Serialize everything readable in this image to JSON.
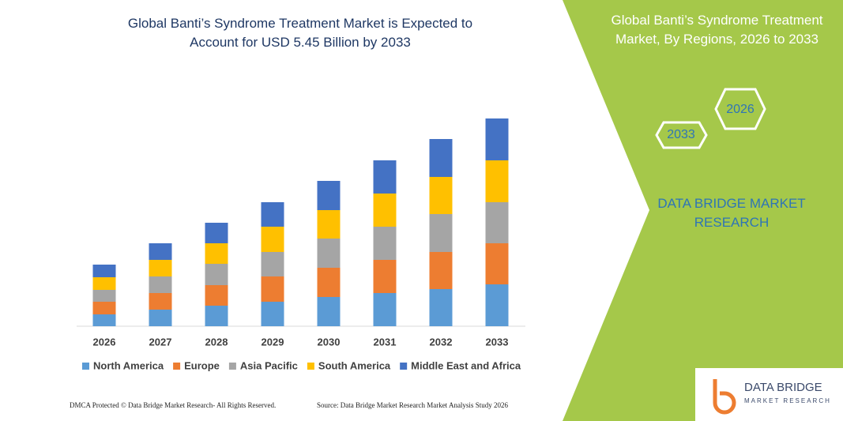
{
  "chart_data": {
    "type": "bar",
    "stacked": true,
    "title": "Global Banti’s Syndrome Treatment Market is Expected to Account for USD 5.45 Billion by 2033",
    "categories": [
      "2026",
      "2027",
      "2028",
      "2029",
      "2030",
      "2031",
      "2032",
      "2033"
    ],
    "series": [
      {
        "name": "North America",
        "color": "#5b9bd5",
        "values": [
          15,
          21,
          26,
          31,
          37,
          42,
          47,
          53
        ]
      },
      {
        "name": "Europe",
        "color": "#ed7d31",
        "values": [
          16,
          21,
          26,
          32,
          37,
          42,
          47,
          52
        ]
      },
      {
        "name": "Asia Pacific",
        "color": "#a5a5a5",
        "values": [
          15,
          21,
          27,
          31,
          37,
          42,
          48,
          52
        ]
      },
      {
        "name": "South America",
        "color": "#ffc000",
        "values": [
          16,
          21,
          26,
          32,
          36,
          42,
          47,
          53
        ]
      },
      {
        "name": "Middle East and Africa",
        "color": "#4472c4",
        "values": [
          16,
          21,
          26,
          31,
          37,
          42,
          48,
          53
        ]
      }
    ]
  },
  "panel": {
    "title": "Global Banti’s Syndrome Treatment Market, By Regions, 2026 to 2033",
    "hexagons": [
      "2026",
      "2033"
    ],
    "brand": "DATA BRIDGE MARKET RESEARCH"
  },
  "footer": {
    "dmca": "DMCA Protected © Data Bridge Market Research- All Rights Reserved.",
    "source": "Source: Data Bridge Market Research Market Analysis Study 2026"
  },
  "logo": {
    "name": "DATA BRIDGE",
    "tagline": "MARKET RESEARCH"
  }
}
